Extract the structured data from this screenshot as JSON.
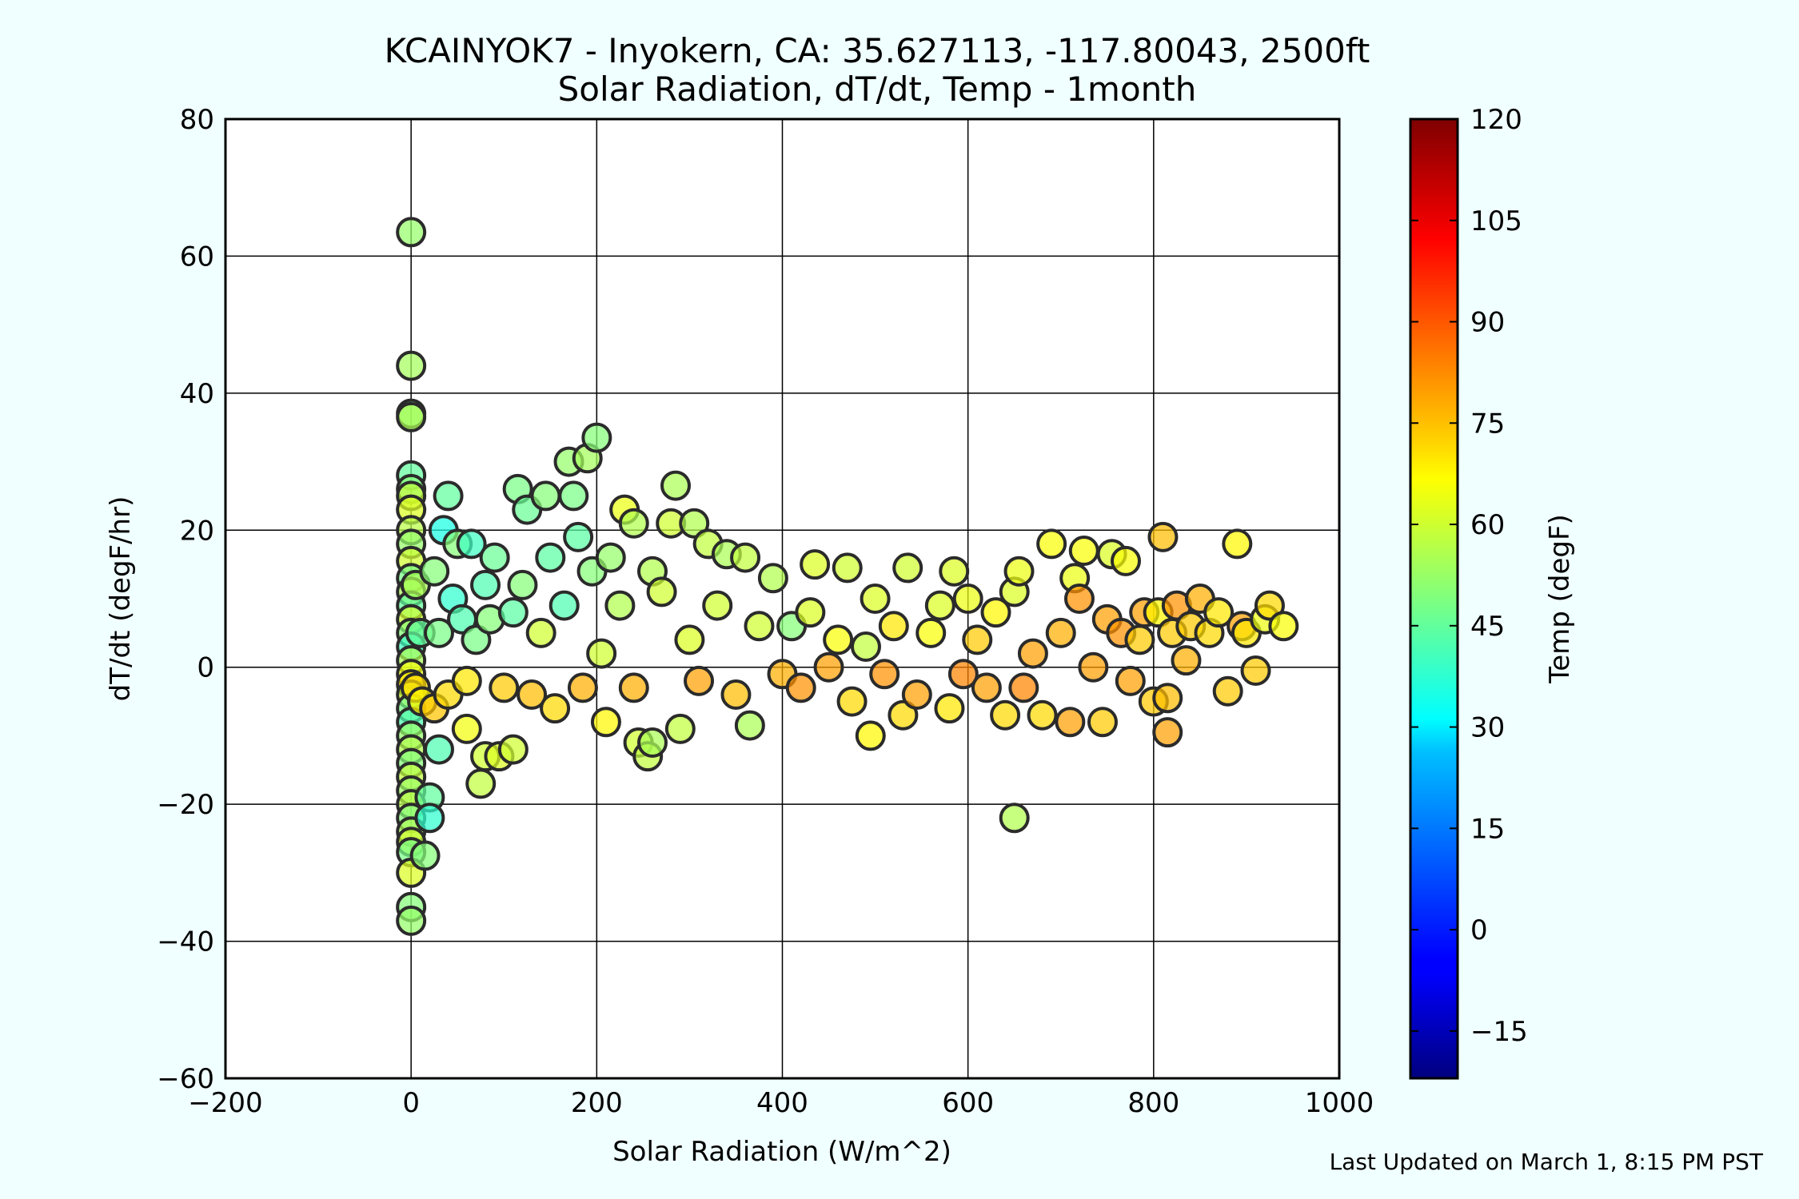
{
  "chart_data": {
    "type": "scatter",
    "title": "KCAINYOK7 - Inyokern, CA: 35.627113, -117.80043, 2500ft",
    "subtitle": "Solar Radiation, dT/dt, Temp - 1month",
    "xlabel": "Solar Radiation (W/m^2)",
    "ylabel": "dT/dt (degF/hr)",
    "xlim": [
      -200,
      1000
    ],
    "ylim": [
      -60,
      80
    ],
    "x_ticks": [
      "−200",
      "0",
      "200",
      "400",
      "600",
      "800",
      "1000"
    ],
    "y_ticks": [
      "−60",
      "−40",
      "−20",
      "0",
      "20",
      "40",
      "60",
      "80"
    ],
    "grid": true,
    "colorbar": {
      "label": "Temp (degF)",
      "range": [
        -22,
        120
      ],
      "ticks": [
        "−15",
        "0",
        "15",
        "30",
        "45",
        "60",
        "75",
        "90",
        "105",
        "120"
      ],
      "colormap": "jet"
    },
    "points": [
      {
        "x": 0,
        "y": 63.5,
        "c": 52
      },
      {
        "x": 0,
        "y": 44,
        "c": 54
      },
      {
        "x": 0,
        "y": 37,
        "c": 50
      },
      {
        "x": 0,
        "y": 36.5,
        "c": 55
      },
      {
        "x": 0,
        "y": 28,
        "c": 45
      },
      {
        "x": 0,
        "y": 26,
        "c": 50
      },
      {
        "x": 0,
        "y": 25,
        "c": 58
      },
      {
        "x": 0,
        "y": 23,
        "c": 62
      },
      {
        "x": 0,
        "y": 20,
        "c": 57
      },
      {
        "x": 0,
        "y": 18,
        "c": 52
      },
      {
        "x": 0,
        "y": 15.5,
        "c": 60
      },
      {
        "x": 0,
        "y": 13,
        "c": 48
      },
      {
        "x": 0,
        "y": 11,
        "c": 55
      },
      {
        "x": 0,
        "y": 9,
        "c": 45
      },
      {
        "x": 0,
        "y": 7,
        "c": 60
      },
      {
        "x": 0,
        "y": 5,
        "c": 50
      },
      {
        "x": 0,
        "y": 3,
        "c": 40
      },
      {
        "x": 0,
        "y": 1,
        "c": 55
      },
      {
        "x": 0,
        "y": -1,
        "c": 65
      },
      {
        "x": 0,
        "y": -2.5,
        "c": 70
      },
      {
        "x": 0,
        "y": -4,
        "c": 60
      },
      {
        "x": 0,
        "y": -6,
        "c": 48
      },
      {
        "x": 0,
        "y": -8,
        "c": 42
      },
      {
        "x": 0,
        "y": -10,
        "c": 52
      },
      {
        "x": 0,
        "y": -12,
        "c": 56
      },
      {
        "x": 0,
        "y": -14,
        "c": 50
      },
      {
        "x": 0,
        "y": -16,
        "c": 58
      },
      {
        "x": 0,
        "y": -18,
        "c": 53
      },
      {
        "x": 0,
        "y": -20,
        "c": 57
      },
      {
        "x": 0,
        "y": -22,
        "c": 50
      },
      {
        "x": 0,
        "y": -24,
        "c": 55
      },
      {
        "x": 0,
        "y": -25.5,
        "c": 60
      },
      {
        "x": 0,
        "y": -27,
        "c": 48
      },
      {
        "x": 0,
        "y": -30,
        "c": 62
      },
      {
        "x": 0,
        "y": -35,
        "c": 50
      },
      {
        "x": 0,
        "y": -37,
        "c": 52
      },
      {
        "x": 5,
        "y": 12,
        "c": 55
      },
      {
        "x": 5,
        "y": -3,
        "c": 72
      },
      {
        "x": 10,
        "y": 5,
        "c": 45
      },
      {
        "x": 12,
        "y": -5,
        "c": 68
      },
      {
        "x": 15,
        "y": -27.5,
        "c": 50
      },
      {
        "x": 20,
        "y": -19,
        "c": 45
      },
      {
        "x": 20,
        "y": -22,
        "c": 38
      },
      {
        "x": 25,
        "y": 14,
        "c": 50
      },
      {
        "x": 25,
        "y": -6,
        "c": 75
      },
      {
        "x": 30,
        "y": 5,
        "c": 48
      },
      {
        "x": 30,
        "y": -12,
        "c": 42
      },
      {
        "x": 35,
        "y": 20,
        "c": 35
      },
      {
        "x": 40,
        "y": 25,
        "c": 45
      },
      {
        "x": 40,
        "y": -4,
        "c": 72
      },
      {
        "x": 45,
        "y": 10,
        "c": 38
      },
      {
        "x": 50,
        "y": 18,
        "c": 50
      },
      {
        "x": 55,
        "y": 7,
        "c": 42
      },
      {
        "x": 60,
        "y": -2,
        "c": 70
      },
      {
        "x": 60,
        "y": -9,
        "c": 65
      },
      {
        "x": 65,
        "y": 18,
        "c": 40
      },
      {
        "x": 70,
        "y": 4,
        "c": 48
      },
      {
        "x": 75,
        "y": -17,
        "c": 58
      },
      {
        "x": 80,
        "y": 12,
        "c": 42
      },
      {
        "x": 80,
        "y": -13,
        "c": 60
      },
      {
        "x": 85,
        "y": 7,
        "c": 50
      },
      {
        "x": 90,
        "y": 16,
        "c": 46
      },
      {
        "x": 95,
        "y": -13,
        "c": 62
      },
      {
        "x": 100,
        "y": -3,
        "c": 74
      },
      {
        "x": 110,
        "y": 8,
        "c": 44
      },
      {
        "x": 110,
        "y": -12,
        "c": 60
      },
      {
        "x": 115,
        "y": 26,
        "c": 48
      },
      {
        "x": 120,
        "y": 12,
        "c": 50
      },
      {
        "x": 125,
        "y": 23,
        "c": 46
      },
      {
        "x": 130,
        "y": -4,
        "c": 76
      },
      {
        "x": 140,
        "y": 5,
        "c": 60
      },
      {
        "x": 145,
        "y": 25,
        "c": 50
      },
      {
        "x": 150,
        "y": 16,
        "c": 44
      },
      {
        "x": 155,
        "y": -6,
        "c": 72
      },
      {
        "x": 165,
        "y": 9,
        "c": 42
      },
      {
        "x": 170,
        "y": 30,
        "c": 52
      },
      {
        "x": 175,
        "y": 25,
        "c": 48
      },
      {
        "x": 180,
        "y": 19,
        "c": 44
      },
      {
        "x": 185,
        "y": -3,
        "c": 78
      },
      {
        "x": 190,
        "y": 30.5,
        "c": 54
      },
      {
        "x": 195,
        "y": 14,
        "c": 50
      },
      {
        "x": 200,
        "y": 33.5,
        "c": 50
      },
      {
        "x": 205,
        "y": 2,
        "c": 60
      },
      {
        "x": 210,
        "y": -8,
        "c": 68
      },
      {
        "x": 215,
        "y": 16,
        "c": 52
      },
      {
        "x": 225,
        "y": 9,
        "c": 56
      },
      {
        "x": 230,
        "y": 23,
        "c": 64
      },
      {
        "x": 240,
        "y": -3,
        "c": 78
      },
      {
        "x": 240,
        "y": 21,
        "c": 56
      },
      {
        "x": 245,
        "y": -11,
        "c": 60
      },
      {
        "x": 255,
        "y": -13,
        "c": 58
      },
      {
        "x": 260,
        "y": -11,
        "c": 55
      },
      {
        "x": 260,
        "y": 14,
        "c": 56
      },
      {
        "x": 270,
        "y": 11,
        "c": 60
      },
      {
        "x": 280,
        "y": 21,
        "c": 60
      },
      {
        "x": 285,
        "y": 26.5,
        "c": 55
      },
      {
        "x": 290,
        "y": -9,
        "c": 58
      },
      {
        "x": 300,
        "y": 4,
        "c": 62
      },
      {
        "x": 305,
        "y": 21,
        "c": 56
      },
      {
        "x": 310,
        "y": -2,
        "c": 80
      },
      {
        "x": 320,
        "y": 18,
        "c": 58
      },
      {
        "x": 330,
        "y": 9,
        "c": 60
      },
      {
        "x": 340,
        "y": 16.5,
        "c": 55
      },
      {
        "x": 350,
        "y": -4,
        "c": 76
      },
      {
        "x": 360,
        "y": 16,
        "c": 58
      },
      {
        "x": 365,
        "y": -8.5,
        "c": 55
      },
      {
        "x": 375,
        "y": 6,
        "c": 60
      },
      {
        "x": 390,
        "y": 13,
        "c": 56
      },
      {
        "x": 400,
        "y": -1,
        "c": 78
      },
      {
        "x": 410,
        "y": 6,
        "c": 50
      },
      {
        "x": 420,
        "y": -3,
        "c": 82
      },
      {
        "x": 430,
        "y": 8,
        "c": 62
      },
      {
        "x": 435,
        "y": 15,
        "c": 62
      },
      {
        "x": 450,
        "y": 0,
        "c": 80
      },
      {
        "x": 460,
        "y": 4,
        "c": 66
      },
      {
        "x": 470,
        "y": 14.5,
        "c": 60
      },
      {
        "x": 475,
        "y": -5,
        "c": 72
      },
      {
        "x": 490,
        "y": 3,
        "c": 58
      },
      {
        "x": 495,
        "y": -10,
        "c": 68
      },
      {
        "x": 500,
        "y": 10,
        "c": 62
      },
      {
        "x": 510,
        "y": -1,
        "c": 82
      },
      {
        "x": 520,
        "y": 6,
        "c": 70
      },
      {
        "x": 530,
        "y": -7,
        "c": 72
      },
      {
        "x": 535,
        "y": 14.5,
        "c": 60
      },
      {
        "x": 545,
        "y": -4,
        "c": 80
      },
      {
        "x": 560,
        "y": 5,
        "c": 66
      },
      {
        "x": 570,
        "y": 9,
        "c": 62
      },
      {
        "x": 580,
        "y": -6,
        "c": 70
      },
      {
        "x": 585,
        "y": 14,
        "c": 62
      },
      {
        "x": 595,
        "y": -1,
        "c": 84
      },
      {
        "x": 600,
        "y": 10,
        "c": 64
      },
      {
        "x": 610,
        "y": 4,
        "c": 74
      },
      {
        "x": 620,
        "y": -3,
        "c": 80
      },
      {
        "x": 630,
        "y": 8,
        "c": 68
      },
      {
        "x": 640,
        "y": -7,
        "c": 72
      },
      {
        "x": 650,
        "y": -22,
        "c": 56
      },
      {
        "x": 650,
        "y": 11,
        "c": 62
      },
      {
        "x": 655,
        "y": 14,
        "c": 64
      },
      {
        "x": 660,
        "y": -3,
        "c": 84
      },
      {
        "x": 670,
        "y": 2,
        "c": 80
      },
      {
        "x": 680,
        "y": -7,
        "c": 72
      },
      {
        "x": 690,
        "y": 18,
        "c": 66
      },
      {
        "x": 700,
        "y": 5,
        "c": 78
      },
      {
        "x": 710,
        "y": -8,
        "c": 80
      },
      {
        "x": 715,
        "y": 13,
        "c": 64
      },
      {
        "x": 720,
        "y": 10,
        "c": 82
      },
      {
        "x": 725,
        "y": 17,
        "c": 66
      },
      {
        "x": 735,
        "y": 0,
        "c": 80
      },
      {
        "x": 745,
        "y": -8,
        "c": 74
      },
      {
        "x": 750,
        "y": 7,
        "c": 80
      },
      {
        "x": 755,
        "y": 16.5,
        "c": 62
      },
      {
        "x": 765,
        "y": 5,
        "c": 82
      },
      {
        "x": 770,
        "y": 15.5,
        "c": 66
      },
      {
        "x": 775,
        "y": -2,
        "c": 80
      },
      {
        "x": 785,
        "y": 4,
        "c": 74
      },
      {
        "x": 790,
        "y": 8,
        "c": 80
      },
      {
        "x": 800,
        "y": -5,
        "c": 74
      },
      {
        "x": 805,
        "y": 8,
        "c": 68
      },
      {
        "x": 810,
        "y": 19,
        "c": 76
      },
      {
        "x": 815,
        "y": -4.5,
        "c": 76
      },
      {
        "x": 815,
        "y": -9.5,
        "c": 80
      },
      {
        "x": 820,
        "y": 5,
        "c": 74
      },
      {
        "x": 825,
        "y": 9,
        "c": 82
      },
      {
        "x": 835,
        "y": 1,
        "c": 78
      },
      {
        "x": 840,
        "y": 6,
        "c": 74
      },
      {
        "x": 850,
        "y": 10,
        "c": 78
      },
      {
        "x": 860,
        "y": 5,
        "c": 72
      },
      {
        "x": 870,
        "y": 8,
        "c": 70
      },
      {
        "x": 880,
        "y": -3.5,
        "c": 74
      },
      {
        "x": 890,
        "y": 18,
        "c": 68
      },
      {
        "x": 895,
        "y": 6,
        "c": 80
      },
      {
        "x": 900,
        "y": 5,
        "c": 70
      },
      {
        "x": 910,
        "y": -0.5,
        "c": 74
      },
      {
        "x": 920,
        "y": 7,
        "c": 64
      },
      {
        "x": 925,
        "y": 9,
        "c": 72
      },
      {
        "x": 940,
        "y": 6,
        "c": 66
      }
    ]
  },
  "footer": {
    "last_updated": "Last Updated on March 1, 8:15 PM PST"
  }
}
